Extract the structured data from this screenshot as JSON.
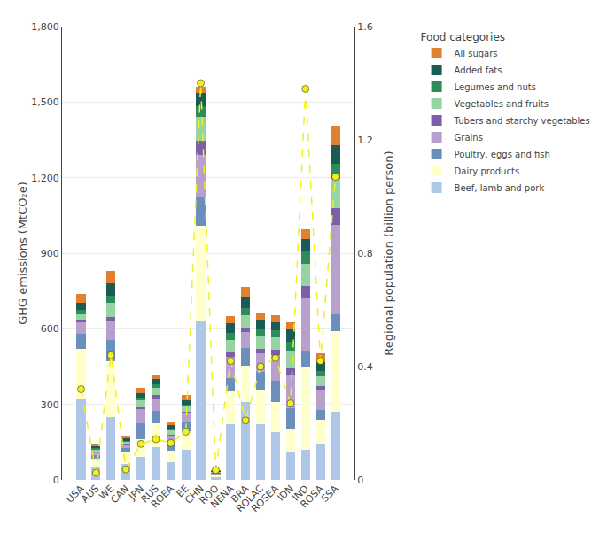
{
  "chart_data": {
    "type": "bar",
    "stacked": true,
    "grid": true,
    "legend": "right",
    "legend_title": "Food categories",
    "ylabel": "GHG emissions (MtCO₂e)",
    "y2label": "Regional population (billion person)",
    "categories": [
      "USA",
      "AUS",
      "WE",
      "CAN",
      "JPN",
      "RUS",
      "ROEA",
      "EE",
      "CHN",
      "ROO",
      "NENA",
      "BRA",
      "ROLAC",
      "ROSEA",
      "IDN",
      "IND",
      "ROSA",
      "SSA"
    ],
    "ylim": [
      0,
      1800
    ],
    "yticks": [
      0,
      300,
      600,
      900,
      {
        "value": 1200,
        "label": "1,200"
      },
      {
        "value": 1500,
        "label": "1,500"
      },
      {
        "value": 1800,
        "label": "1,800"
      }
    ],
    "y2lim": [
      0,
      1.6
    ],
    "y2ticks": [
      0,
      0.4,
      0.8,
      1.2,
      1.6
    ],
    "series": [
      {
        "name": "Beef, lamb and pork",
        "color": "#aec6e8",
        "values": [
          320,
          50,
          250,
          65,
          90,
          130,
          70,
          120,
          630,
          12,
          220,
          310,
          220,
          190,
          110,
          120,
          140,
          270
        ]
      },
      {
        "name": "Dairy products",
        "color": "#ffffcc",
        "values": [
          200,
          35,
          220,
          45,
          70,
          95,
          45,
          75,
          380,
          8,
          130,
          145,
          140,
          120,
          90,
          330,
          100,
          320
        ]
      },
      {
        "name": "Poultry, eggs and fish",
        "color": "#6a8fbc",
        "values": [
          60,
          12,
          85,
          18,
          65,
          48,
          28,
          32,
          110,
          4,
          55,
          68,
          68,
          85,
          85,
          62,
          38,
          68
        ]
      },
      {
        "name": "Grains",
        "color": "#b8a0cc",
        "values": [
          45,
          12,
          75,
          12,
          55,
          48,
          28,
          35,
          170,
          4,
          85,
          65,
          75,
          100,
          130,
          210,
          78,
          355
        ]
      },
      {
        "name": "Tubers and starchy vegetables",
        "color": "#7b5ea7",
        "values": [
          12,
          4,
          18,
          4,
          8,
          18,
          8,
          8,
          55,
          2,
          18,
          18,
          18,
          22,
          28,
          48,
          18,
          68
        ]
      },
      {
        "name": "Vegetables and fruits",
        "color": "#98d4a3",
        "values": [
          22,
          8,
          55,
          8,
          28,
          28,
          18,
          22,
          95,
          2,
          48,
          48,
          48,
          48,
          68,
          88,
          38,
          115
        ]
      },
      {
        "name": "Legumes and nuts",
        "color": "#2e8b5a",
        "values": [
          15,
          4,
          28,
          4,
          12,
          12,
          8,
          8,
          45,
          2,
          28,
          28,
          28,
          28,
          38,
          48,
          22,
          58
        ]
      },
      {
        "name": "Added fats",
        "color": "#1a5c55",
        "values": [
          28,
          8,
          48,
          8,
          18,
          22,
          12,
          18,
          50,
          2,
          38,
          42,
          38,
          32,
          48,
          52,
          32,
          75
        ]
      },
      {
        "name": "All sugars",
        "color": "#e08030",
        "values": [
          38,
          8,
          50,
          12,
          18,
          18,
          12,
          18,
          25,
          2,
          28,
          42,
          28,
          28,
          28,
          38,
          38,
          78
        ]
      },
      {
        "type": "line",
        "axis": "y2",
        "color": "#f0f020",
        "marker": "circle",
        "line_style": "dashed",
        "values": [
          0.32,
          0.025,
          0.44,
          0.037,
          0.127,
          0.144,
          0.13,
          0.17,
          1.4,
          0.035,
          0.42,
          0.21,
          0.4,
          0.43,
          0.27,
          1.38,
          0.42,
          1.07
        ]
      }
    ]
  }
}
